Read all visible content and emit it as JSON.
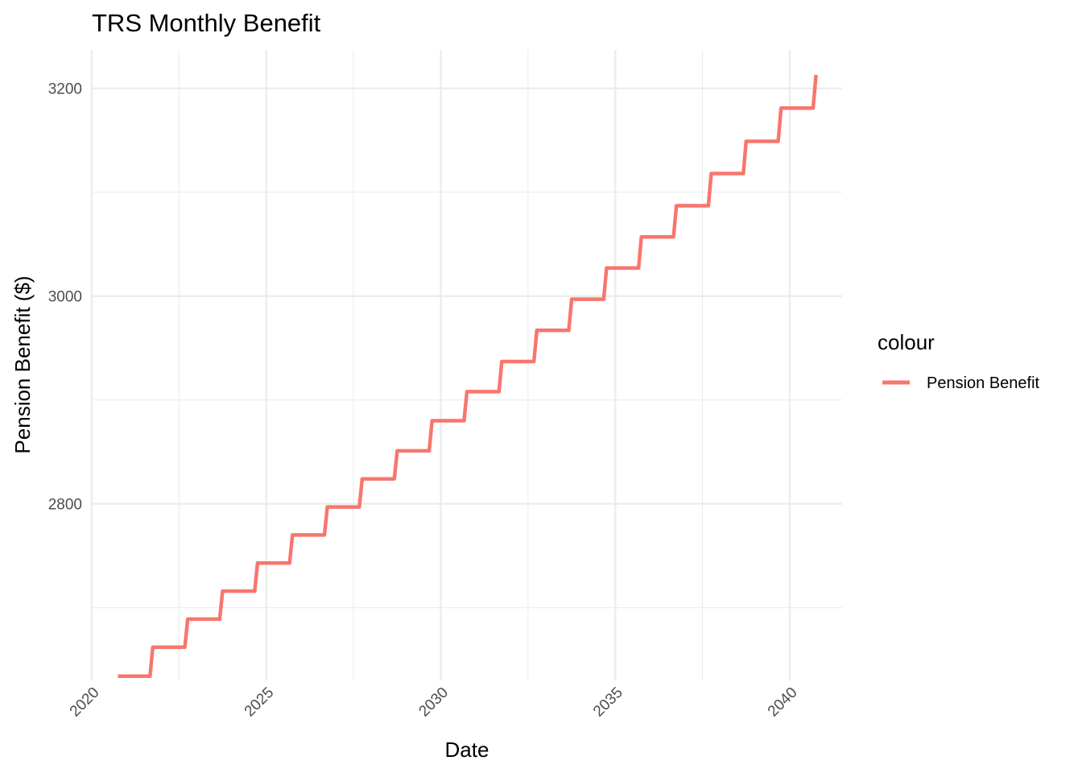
{
  "chart_data": {
    "type": "line",
    "title": "TRS Monthly Benefit",
    "xlabel": "Date",
    "ylabel": "Pension Benefit ($)",
    "xlim": [
      "2020-01-01",
      "2041-07-01"
    ],
    "ylim": [
      2630,
      3237
    ],
    "x_ticks": [
      "2020",
      "2025",
      "2030",
      "2035",
      "2040"
    ],
    "y_ticks": [
      2800,
      3000,
      3200
    ],
    "grid": true,
    "legend": {
      "title": "colour",
      "position": "right"
    },
    "series": [
      {
        "name": "Pension Benefit",
        "color": "#F8766D",
        "points": [
          {
            "x": "2020-10-01",
            "y": 2634
          },
          {
            "x": "2021-09-01",
            "y": 2662
          },
          {
            "x": "2022-09-01",
            "y": 2689
          },
          {
            "x": "2023-09-01",
            "y": 2716
          },
          {
            "x": "2024-09-01",
            "y": 2743
          },
          {
            "x": "2025-09-01",
            "y": 2770
          },
          {
            "x": "2026-09-01",
            "y": 2797
          },
          {
            "x": "2027-09-01",
            "y": 2824
          },
          {
            "x": "2028-09-01",
            "y": 2851
          },
          {
            "x": "2029-09-01",
            "y": 2880
          },
          {
            "x": "2030-09-01",
            "y": 2908
          },
          {
            "x": "2031-09-01",
            "y": 2937
          },
          {
            "x": "2032-09-01",
            "y": 2967
          },
          {
            "x": "2033-09-01",
            "y": 2997
          },
          {
            "x": "2034-09-01",
            "y": 3027
          },
          {
            "x": "2035-09-01",
            "y": 3057
          },
          {
            "x": "2036-09-01",
            "y": 3087
          },
          {
            "x": "2037-09-01",
            "y": 3118
          },
          {
            "x": "2038-09-01",
            "y": 3149
          },
          {
            "x": "2039-09-01",
            "y": 3181
          },
          {
            "x": "2040-08-01",
            "y": 3181
          },
          {
            "x": "2040-09-01",
            "y": 3213
          }
        ]
      }
    ]
  }
}
